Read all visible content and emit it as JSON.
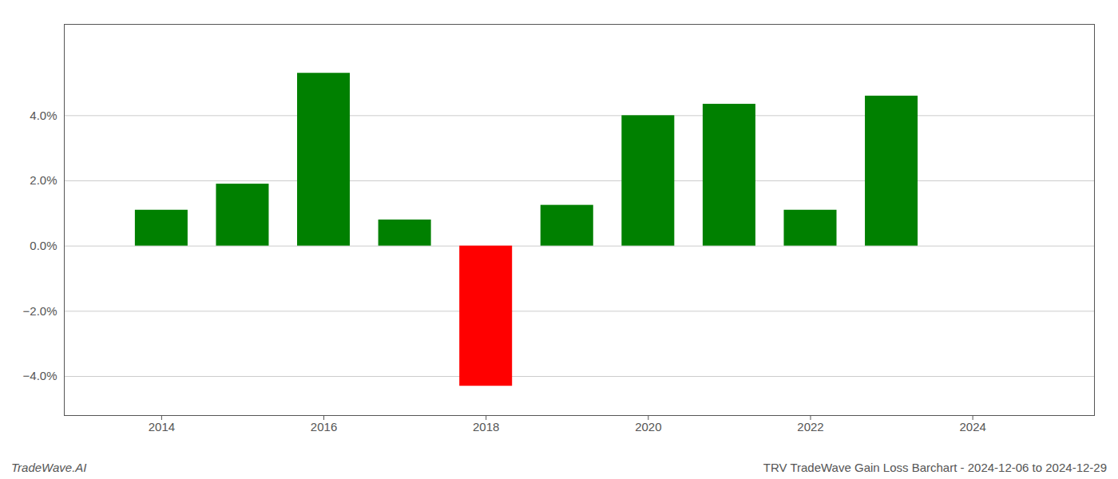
{
  "chart_data": {
    "type": "bar",
    "title": "TRV TradeWave Gain Loss Barchart - 2024-12-06 to 2024-12-29",
    "annotations": [
      "TradeWave.AI"
    ],
    "x": [
      2014,
      2015,
      2016,
      2017,
      2018,
      2019,
      2020,
      2021,
      2022,
      2023
    ],
    "values": [
      1.1,
      1.9,
      5.3,
      0.8,
      -4.3,
      1.25,
      4.0,
      4.35,
      1.1,
      4.6
    ],
    "colors": [
      "#008000",
      "#008000",
      "#008000",
      "#008000",
      "#ff0000",
      "#008000",
      "#008000",
      "#008000",
      "#008000",
      "#008000"
    ],
    "xlim": [
      2012.8,
      2025.5
    ],
    "xticks": [
      2014,
      2016,
      2018,
      2020,
      2022,
      2024
    ],
    "ylim": [
      -5.2,
      6.8
    ],
    "yticks": [
      {
        "value": -4.0,
        "label": "−4.0%"
      },
      {
        "value": -2.0,
        "label": "−2.0%"
      },
      {
        "value": 0.0,
        "label": "0.0%"
      },
      {
        "value": 2.0,
        "label": "2.0%"
      },
      {
        "value": 4.0,
        "label": "4.0%"
      }
    ],
    "grid": true
  }
}
